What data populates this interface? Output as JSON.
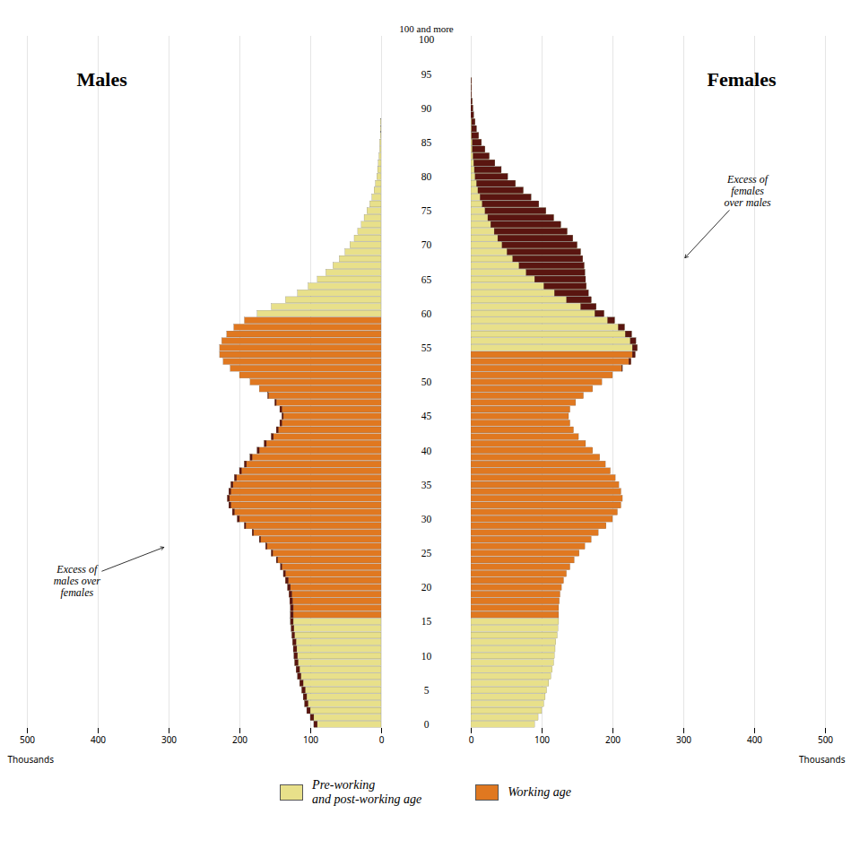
{
  "chart_data": {
    "type": "bar",
    "orientation": "horizontal",
    "categories": [
      "0",
      null,
      null,
      null,
      null,
      "5",
      null,
      null,
      null,
      null,
      "10",
      null,
      null,
      null,
      null,
      "15",
      null,
      null,
      null,
      null,
      "20",
      null,
      null,
      null,
      null,
      "25",
      null,
      null,
      null,
      null,
      "30",
      null,
      null,
      null,
      null,
      "35",
      null,
      null,
      null,
      null,
      "40",
      null,
      null,
      null,
      null,
      "45",
      null,
      null,
      null,
      null,
      "50",
      null,
      null,
      null,
      null,
      "55",
      null,
      null,
      null,
      null,
      "60",
      null,
      null,
      null,
      null,
      "65",
      null,
      null,
      null,
      null,
      "70",
      null,
      null,
      null,
      null,
      "75",
      null,
      null,
      null,
      null,
      "80",
      null,
      null,
      null,
      null,
      "85",
      null,
      null,
      null,
      null,
      "90",
      null,
      null,
      null,
      null,
      "95",
      null,
      null,
      null,
      null,
      "100"
    ],
    "top_label": "100 and more",
    "series": [
      {
        "name": "Males",
        "values": [
          95,
          100,
          105,
          108,
          110,
          112,
          115,
          118,
          120,
          122,
          123,
          124,
          125,
          126,
          127,
          128,
          128,
          128,
          129,
          130,
          132,
          135,
          138,
          142,
          148,
          155,
          163,
          172,
          182,
          193,
          203,
          210,
          215,
          217,
          215,
          212,
          207,
          200,
          193,
          185,
          175,
          165,
          155,
          148,
          143,
          140,
          143,
          150,
          160,
          172,
          185,
          200,
          213,
          223,
          228,
          228,
          225,
          218,
          208,
          193,
          175,
          155,
          135,
          118,
          103,
          90,
          78,
          68,
          59,
          51,
          44,
          38,
          33,
          28,
          24,
          20,
          16,
          13,
          10,
          8,
          6,
          5,
          4,
          3,
          2,
          2,
          1,
          1,
          1,
          0,
          0,
          0,
          0,
          0,
          0,
          0,
          0,
          0,
          0,
          0,
          0
        ],
        "colors": [
          "#e8e08a",
          "#e8e08a",
          "#e8e08a",
          "#e8e08a",
          "#e8e08a",
          "#e8e08a",
          "#e8e08a",
          "#e8e08a",
          "#e8e08a",
          "#e8e08a",
          "#e8e08a",
          "#e8e08a",
          "#e8e08a",
          "#e8e08a",
          "#e8e08a",
          "#e8e08a",
          "#e07820",
          "#e07820",
          "#e07820",
          "#e07820",
          "#e07820",
          "#e07820",
          "#e07820",
          "#e07820",
          "#e07820",
          "#e07820",
          "#e07820",
          "#e07820",
          "#e07820",
          "#e07820",
          "#e07820",
          "#e07820",
          "#e07820",
          "#e07820",
          "#e07820",
          "#e07820",
          "#e07820",
          "#e07820",
          "#e07820",
          "#e07820",
          "#e07820",
          "#e07820",
          "#e07820",
          "#e07820",
          "#e07820",
          "#e07820",
          "#e07820",
          "#e07820",
          "#e07820",
          "#e07820",
          "#e07820",
          "#e07820",
          "#e07820",
          "#e07820",
          "#e07820",
          "#e07820",
          "#e07820",
          "#e07820",
          "#e07820",
          "#e07820",
          "#e8e08a",
          "#e8e08a",
          "#e8e08a",
          "#e8e08a",
          "#e8e08a",
          "#e8e08a",
          "#e8e08a",
          "#e8e08a",
          "#e8e08a",
          "#e8e08a",
          "#e8e08a",
          "#e8e08a",
          "#e8e08a",
          "#e8e08a",
          "#e8e08a",
          "#e8e08a",
          "#e8e08a",
          "#e8e08a",
          "#e8e08a",
          "#e8e08a",
          "#e8e08a",
          "#e8e08a",
          "#e8e08a",
          "#e8e08a",
          "#e8e08a",
          "#e8e08a",
          "#e8e08a",
          "#e8e08a",
          "#e8e08a",
          "#e8e08a",
          "#e8e08a",
          "#e8e08a",
          "#e8e08a",
          "#e8e08a",
          "#e8e08a",
          "#e8e08a",
          "#e8e08a",
          "#e8e08a",
          "#e8e08a",
          "#e8e08a",
          "#e8e08a"
        ]
      },
      {
        "name": "Females",
        "values": [
          90,
          95,
          100,
          103,
          105,
          107,
          110,
          113,
          115,
          117,
          118,
          119,
          120,
          122,
          123,
          124,
          124,
          124,
          125,
          126,
          128,
          131,
          135,
          140,
          146,
          153,
          161,
          170,
          180,
          191,
          200,
          207,
          212,
          214,
          212,
          209,
          204,
          197,
          190,
          182,
          172,
          162,
          152,
          145,
          140,
          138,
          140,
          148,
          159,
          172,
          185,
          200,
          214,
          226,
          232,
          235,
          233,
          227,
          217,
          203,
          188,
          177,
          170,
          166,
          163,
          162,
          161,
          160,
          158,
          155,
          150,
          144,
          136,
          127,
          117,
          106,
          96,
          85,
          74,
          63,
          52,
          43,
          34,
          26,
          20,
          15,
          11,
          8,
          6,
          4,
          3,
          2,
          1,
          1,
          1,
          0,
          0,
          0,
          0,
          0,
          0
        ],
        "colors": [
          "#e8e08a",
          "#e8e08a",
          "#e8e08a",
          "#e8e08a",
          "#e8e08a",
          "#e8e08a",
          "#e8e08a",
          "#e8e08a",
          "#e8e08a",
          "#e8e08a",
          "#e8e08a",
          "#e8e08a",
          "#e8e08a",
          "#e8e08a",
          "#e8e08a",
          "#e8e08a",
          "#e07820",
          "#e07820",
          "#e07820",
          "#e07820",
          "#e07820",
          "#e07820",
          "#e07820",
          "#e07820",
          "#e07820",
          "#e07820",
          "#e07820",
          "#e07820",
          "#e07820",
          "#e07820",
          "#e07820",
          "#e07820",
          "#e07820",
          "#e07820",
          "#e07820",
          "#e07820",
          "#e07820",
          "#e07820",
          "#e07820",
          "#e07820",
          "#e07820",
          "#e07820",
          "#e07820",
          "#e07820",
          "#e07820",
          "#e07820",
          "#e07820",
          "#e07820",
          "#e07820",
          "#e07820",
          "#e07820",
          "#e07820",
          "#e07820",
          "#e07820",
          "#e07820",
          "#e8e08a",
          "#e8e08a",
          "#e8e08a",
          "#e8e08a",
          "#e8e08a",
          "#e8e08a",
          "#e8e08a",
          "#e8e08a",
          "#e8e08a",
          "#e8e08a",
          "#e8e08a",
          "#e8e08a",
          "#e8e08a",
          "#e8e08a",
          "#e8e08a",
          "#e8e08a",
          "#e8e08a",
          "#e8e08a",
          "#e8e08a",
          "#e8e08a",
          "#e8e08a",
          "#e8e08a",
          "#e8e08a",
          "#e8e08a",
          "#e8e08a",
          "#e8e08a",
          "#e8e08a",
          "#e8e08a",
          "#e8e08a",
          "#e8e08a",
          "#e8e08a",
          "#e8e08a",
          "#e8e08a",
          "#e8e08a",
          "#e8e08a",
          "#e8e08a",
          "#e8e08a",
          "#e8e08a",
          "#e8e08a",
          "#e8e08a",
          "#e8e08a",
          "#e8e08a",
          "#e8e08a",
          "#e8e08a",
          "#e8e08a",
          "#e8e08a"
        ]
      }
    ],
    "excess_color": "#5a1510",
    "xlabel": "Thousands",
    "xlim": [
      0,
      500
    ],
    "xticks": [
      0,
      100,
      200,
      300,
      400,
      500
    ],
    "grid": true,
    "legend": "bottom",
    "legend_entries": [
      {
        "label": "Pre-working\nand post-working age",
        "color": "#e8e08a"
      },
      {
        "label": "Working age",
        "color": "#e07820"
      }
    ],
    "annotations": [
      {
        "series": "Males",
        "text": "Excess of\nmales over\nfemales",
        "x": 305,
        "y": 26,
        "text_x": 430,
        "text_y": 21
      },
      {
        "series": "Females",
        "text": "Excess of\nfemales\nover males",
        "x": 300,
        "y": 68,
        "text_x": 390,
        "text_y": 78
      }
    ]
  }
}
